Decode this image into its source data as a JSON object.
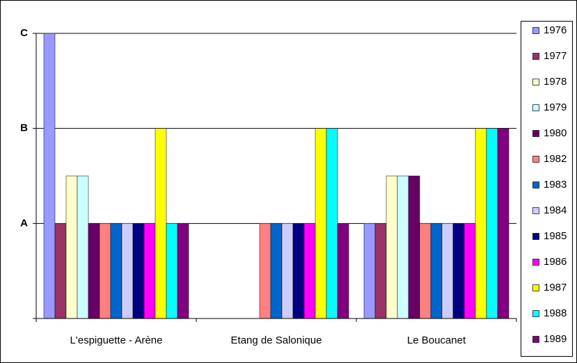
{
  "chart_data": {
    "type": "bar",
    "categories": [
      "L'espiguette - Arène",
      "Etang de Salonique",
      "Le Boucanet"
    ],
    "ylim": [
      0,
      3
    ],
    "yticks": [
      {
        "value": 1,
        "label": "A"
      },
      {
        "value": 2,
        "label": "B"
      },
      {
        "value": 3,
        "label": "C"
      }
    ],
    "grid": true,
    "legend": "right",
    "series": [
      {
        "name": "1976",
        "color": "#9999ff",
        "values": [
          3,
          null,
          1
        ]
      },
      {
        "name": "1977",
        "color": "#993366",
        "values": [
          1,
          null,
          1
        ]
      },
      {
        "name": "1978",
        "color": "#ffffcc",
        "values": [
          1.5,
          null,
          1.5
        ]
      },
      {
        "name": "1979",
        "color": "#ccffff",
        "values": [
          1.5,
          null,
          1.5
        ]
      },
      {
        "name": "1980",
        "color": "#660066",
        "values": [
          1,
          null,
          1.5
        ]
      },
      {
        "name": "1982",
        "color": "#ff8080",
        "values": [
          1,
          1,
          1
        ]
      },
      {
        "name": "1983",
        "color": "#0066cc",
        "values": [
          1,
          1,
          1
        ]
      },
      {
        "name": "1984",
        "color": "#ccccff",
        "values": [
          1,
          1,
          1
        ]
      },
      {
        "name": "1985",
        "color": "#000080",
        "values": [
          1,
          1,
          1
        ]
      },
      {
        "name": "1986",
        "color": "#ff00ff",
        "values": [
          1,
          1,
          1
        ]
      },
      {
        "name": "1987",
        "color": "#ffff00",
        "values": [
          2,
          2,
          2
        ]
      },
      {
        "name": "1988",
        "color": "#00ffff",
        "values": [
          1,
          2,
          2
        ]
      },
      {
        "name": "1989",
        "color": "#800080",
        "values": [
          1,
          1,
          2
        ]
      }
    ]
  }
}
